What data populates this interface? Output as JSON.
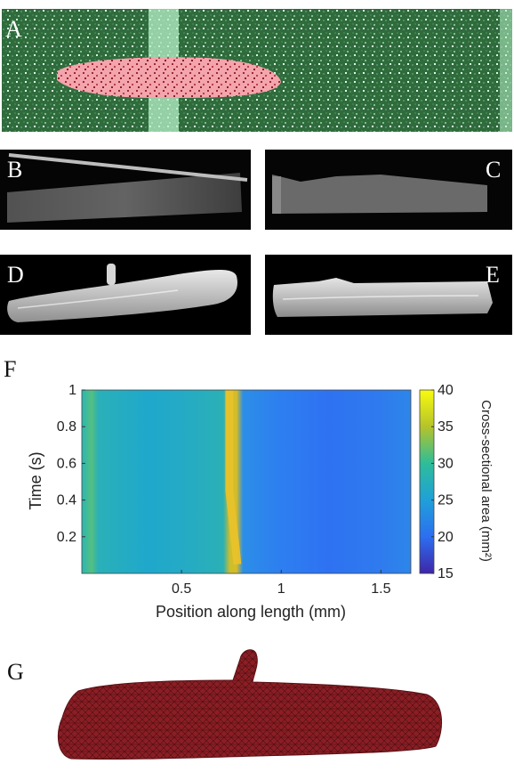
{
  "panel_labels": {
    "a": "A",
    "b": "B",
    "c": "C",
    "d": "D",
    "e": "E",
    "f": "F",
    "g": "G"
  },
  "colors": {
    "segmentation_green": "#2e6b3c",
    "segmentation_red": "#f0a0a8",
    "mesh_red": "#8b1e24"
  },
  "chart_data": {
    "type": "heatmap",
    "xlabel": "Position along length (mm)",
    "ylabel": "Time (s)",
    "colorbar_label": "Cross-sectional area (mm²)",
    "xlim": [
      0,
      1.65
    ],
    "ylim": [
      0,
      1
    ],
    "x_ticks": [
      0.5,
      1,
      1.5
    ],
    "x_tick_labels": [
      "0.5",
      "1",
      "1.5"
    ],
    "y_ticks": [
      0.2,
      0.4,
      0.6,
      0.8,
      1
    ],
    "y_tick_labels": [
      "0.2",
      "0.4",
      "0.6",
      "0.8",
      "1"
    ],
    "clim": [
      15,
      40
    ],
    "colorbar_ticks": [
      15,
      20,
      25,
      30,
      35,
      40
    ],
    "colorbar_tick_labels": [
      "15",
      "20",
      "25",
      "30",
      "35",
      "40"
    ],
    "colormap": "parula",
    "profile_positions": [
      0,
      0.1,
      0.2,
      0.3,
      0.4,
      0.5,
      0.6,
      0.7,
      0.75,
      0.8,
      0.9,
      1.0,
      1.1,
      1.2,
      1.3,
      1.4,
      1.5,
      1.65
    ],
    "profile_area": [
      30,
      26,
      25,
      26,
      25,
      24,
      26,
      28,
      35,
      22,
      21,
      21,
      20,
      20,
      19.5,
      20,
      21,
      21
    ]
  }
}
